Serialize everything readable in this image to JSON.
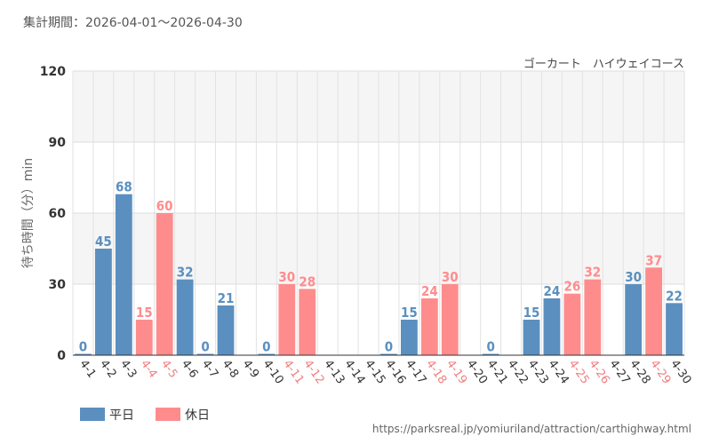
{
  "header": {
    "period": "集計期間：2026-04-01～2026-04-30"
  },
  "chart_data": {
    "type": "bar",
    "title": "ゴーカート　ハイウェイコース",
    "ylabel": "待ち時間（分）min",
    "xlabel": "",
    "ylim": [
      0,
      120
    ],
    "yticks": [
      0,
      30,
      60,
      90,
      120
    ],
    "grid": true,
    "legend_position": "bottom-left",
    "categories": [
      "4-1",
      "4-2",
      "4-3",
      "4-4",
      "4-5",
      "4-6",
      "4-7",
      "4-8",
      "4-9",
      "4-10",
      "4-11",
      "4-12",
      "4-13",
      "4-14",
      "4-15",
      "4-16",
      "4-17",
      "4-18",
      "4-19",
      "4-20",
      "4-21",
      "4-22",
      "4-23",
      "4-24",
      "4-25",
      "4-26",
      "4-27",
      "4-28",
      "4-29",
      "4-30"
    ],
    "values": [
      0,
      45,
      68,
      15,
      60,
      32,
      0,
      21,
      null,
      0,
      30,
      28,
      null,
      null,
      null,
      0,
      15,
      24,
      30,
      null,
      0,
      null,
      15,
      24,
      26,
      32,
      null,
      30,
      37,
      22
    ],
    "day_type": [
      "weekday",
      "weekday",
      "weekday",
      "holiday",
      "holiday",
      "weekday",
      "weekday",
      "weekday",
      "weekday",
      "weekday",
      "holiday",
      "holiday",
      "weekday",
      "weekday",
      "weekday",
      "weekday",
      "weekday",
      "holiday",
      "holiday",
      "weekday",
      "weekday",
      "weekday",
      "weekday",
      "weekday",
      "holiday",
      "holiday",
      "weekday",
      "weekday",
      "holiday",
      "weekday"
    ],
    "series": [
      {
        "key": "weekday",
        "name": "平日",
        "color": "#5b8fbf"
      },
      {
        "key": "holiday",
        "name": "休日",
        "color": "#ff8c8c"
      }
    ],
    "holiday_label_color": "#f07f7f"
  },
  "footer": {
    "source_url": "https://parksreal.jp/yomiuriland/attraction/carthighway.html"
  }
}
